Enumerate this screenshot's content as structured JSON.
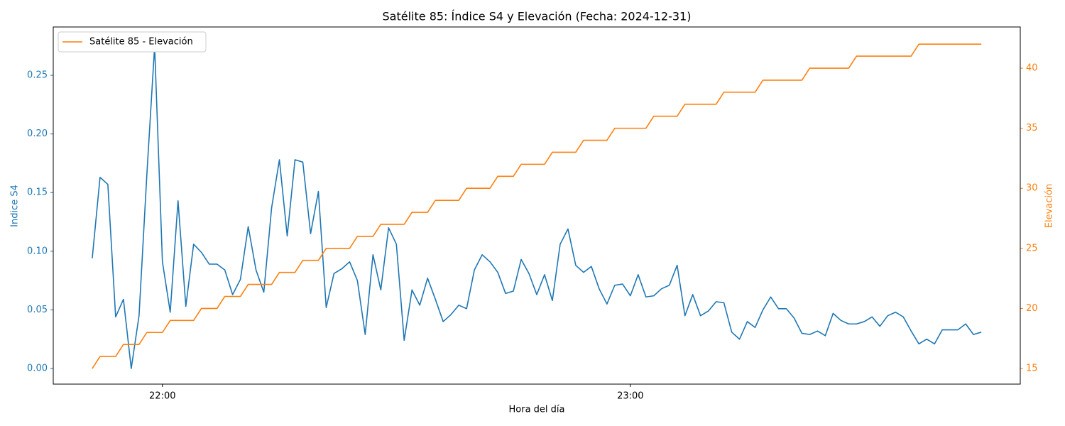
{
  "chart_data": {
    "type": "line",
    "title": "Satélite 85: Índice S4 y Elevación (Fecha: 2024-12-31)",
    "xlabel": "Hora del día",
    "ylabel": "Indice S4",
    "y2label": "Elevación",
    "x": [
      "21:51",
      "21:52",
      "21:53",
      "21:54",
      "21:55",
      "21:56",
      "21:57",
      "21:58",
      "21:59",
      "22:00",
      "22:01",
      "22:02",
      "22:03",
      "22:04",
      "22:05",
      "22:06",
      "22:07",
      "22:08",
      "22:09",
      "22:10",
      "22:11",
      "22:12",
      "22:13",
      "22:14",
      "22:15",
      "22:16",
      "22:17",
      "22:18",
      "22:19",
      "22:20",
      "22:21",
      "22:22",
      "22:23",
      "22:24",
      "22:25",
      "22:26",
      "22:27",
      "22:28",
      "22:29",
      "22:30",
      "22:31",
      "22:32",
      "22:33",
      "22:34",
      "22:35",
      "22:36",
      "22:37",
      "22:38",
      "22:39",
      "22:40",
      "22:41",
      "22:42",
      "22:43",
      "22:44",
      "22:45",
      "22:46",
      "22:47",
      "22:48",
      "22:49",
      "22:50",
      "22:51",
      "22:52",
      "22:53",
      "22:54",
      "22:55",
      "22:56",
      "22:57",
      "22:58",
      "22:59",
      "23:00",
      "23:01",
      "23:02",
      "23:03",
      "23:04",
      "23:05",
      "23:06",
      "23:07",
      "23:08",
      "23:09",
      "23:10",
      "23:11",
      "23:12",
      "23:13",
      "23:14",
      "23:15",
      "23:16",
      "23:17",
      "23:18",
      "23:19",
      "23:20",
      "23:21",
      "23:22",
      "23:23",
      "23:24",
      "23:25",
      "23:26",
      "23:27",
      "23:28",
      "23:29",
      "23:30",
      "23:31",
      "23:32",
      "23:33",
      "23:34",
      "23:35",
      "23:36",
      "23:37",
      "23:38",
      "23:39",
      "23:40",
      "23:41",
      "23:42",
      "23:43",
      "23:44",
      "23:45"
    ],
    "xlim": [
      "21:46",
      "23:50"
    ],
    "xticks": [
      "22:00",
      "23:00"
    ],
    "series": [
      {
        "color": "#1f77b4",
        "axis": "y",
        "values": [
          0.094,
          0.163,
          0.157,
          0.044,
          0.059,
          0.0,
          0.045,
          0.165,
          0.275,
          0.091,
          0.048,
          0.143,
          0.053,
          0.106,
          0.099,
          0.089,
          0.089,
          0.084,
          0.063,
          0.076,
          0.121,
          0.084,
          0.065,
          0.137,
          0.178,
          0.113,
          0.178,
          0.176,
          0.115,
          0.151,
          0.052,
          0.081,
          0.085,
          0.091,
          0.075,
          0.029,
          0.097,
          0.067,
          0.12,
          0.106,
          0.024,
          0.067,
          0.054,
          0.077,
          0.059,
          0.04,
          0.046,
          0.054,
          0.051,
          0.084,
          0.097,
          0.091,
          0.082,
          0.064,
          0.066,
          0.093,
          0.081,
          0.063,
          0.08,
          0.058,
          0.106,
          0.119,
          0.088,
          0.082,
          0.087,
          0.068,
          0.055,
          0.071,
          0.072,
          0.062,
          0.08,
          0.061,
          0.062,
          0.068,
          0.071,
          0.088,
          0.045,
          0.063,
          0.045,
          0.049,
          0.057,
          0.056,
          0.031,
          0.025,
          0.04,
          0.035,
          0.05,
          0.061,
          0.051,
          0.051,
          0.043,
          0.03,
          0.029,
          0.032,
          0.028,
          0.047,
          0.041,
          0.038,
          0.038,
          0.04,
          0.044,
          0.036,
          0.045,
          0.048,
          0.044,
          0.032,
          0.021,
          0.025,
          0.021,
          0.033,
          0.033,
          0.033,
          0.038,
          0.029,
          0.031
        ]
      },
      {
        "name": "Satélite 85 - Elevación",
        "color": "#ff7f0e",
        "axis": "y2",
        "values": [
          15,
          16,
          16,
          16,
          17,
          17,
          17,
          18,
          18,
          18,
          19,
          19,
          19,
          19,
          20,
          20,
          20,
          21,
          21,
          21,
          22,
          22,
          22,
          22,
          23,
          23,
          23,
          24,
          24,
          24,
          25,
          25,
          25,
          25,
          26,
          26,
          26,
          27,
          27,
          27,
          27,
          28,
          28,
          28,
          29,
          29,
          29,
          29,
          30,
          30,
          30,
          30,
          31,
          31,
          31,
          32,
          32,
          32,
          32,
          33,
          33,
          33,
          33,
          34,
          34,
          34,
          34,
          35,
          35,
          35,
          35,
          35,
          36,
          36,
          36,
          36,
          37,
          37,
          37,
          37,
          37,
          38,
          38,
          38,
          38,
          38,
          39,
          39,
          39,
          39,
          39,
          39,
          40,
          40,
          40,
          40,
          40,
          40,
          41,
          41,
          41,
          41,
          41,
          41,
          41,
          41,
          42,
          42,
          42,
          42,
          42,
          42,
          42,
          42,
          42
        ]
      }
    ],
    "ylim": [
      -0.0133,
      0.2912
    ],
    "yticks": [
      {
        "value": 0,
        "label": "0.00"
      },
      {
        "value": 0.05,
        "label": "0.05"
      },
      {
        "value": 0.1,
        "label": "0.10"
      },
      {
        "value": 0.15,
        "label": "0.15"
      },
      {
        "value": 0.2,
        "label": "0.20"
      },
      {
        "value": 0.25,
        "label": "0.25"
      }
    ],
    "y2lim": [
      13.7,
      43.43
    ],
    "y2ticks": [
      15,
      20,
      25,
      30,
      35,
      40
    ],
    "legend": "upper left"
  }
}
